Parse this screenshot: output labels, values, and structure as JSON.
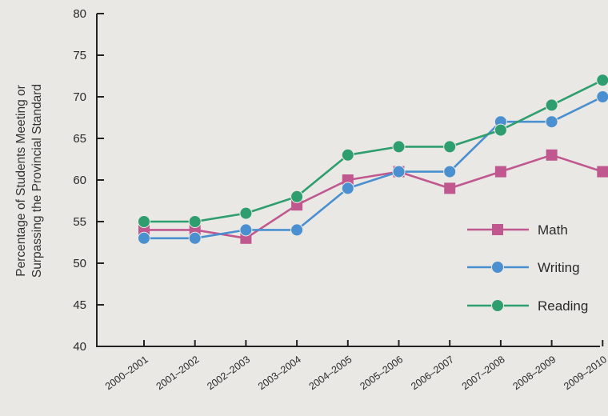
{
  "chart_data": {
    "type": "line",
    "title": "",
    "ylabel": "Percentage of Students Meeting or Surpassing the Provincial Standard",
    "ylabel_lines": [
      "Percentage of Students Meeting or",
      "Surpassing the Provincial Standard"
    ],
    "xlabel": "",
    "categories": [
      "2000–2001",
      "2001–2002",
      "2002–2003",
      "2003–2004",
      "2004–2005",
      "2005–2006",
      "2006–2007",
      "2007–2008",
      "2008–2009",
      "2009–2010"
    ],
    "ylim": [
      40,
      80
    ],
    "yticks": [
      40,
      45,
      50,
      55,
      60,
      65,
      70,
      75,
      80
    ],
    "grid": false,
    "legend_position": "right",
    "series": [
      {
        "name": "Math",
        "marker": "square",
        "color": "#c0588f",
        "values": [
          54,
          54,
          53,
          57,
          60,
          61,
          59,
          61,
          63,
          61
        ]
      },
      {
        "name": "Writing",
        "marker": "circle",
        "color": "#4a8fd0",
        "values": [
          53,
          53,
          54,
          54,
          59,
          61,
          61,
          67,
          67,
          70
        ]
      },
      {
        "name": "Reading",
        "marker": "circle",
        "color": "#2e9e6e",
        "values": [
          55,
          55,
          56,
          58,
          63,
          64,
          64,
          66,
          69,
          72
        ]
      }
    ]
  }
}
